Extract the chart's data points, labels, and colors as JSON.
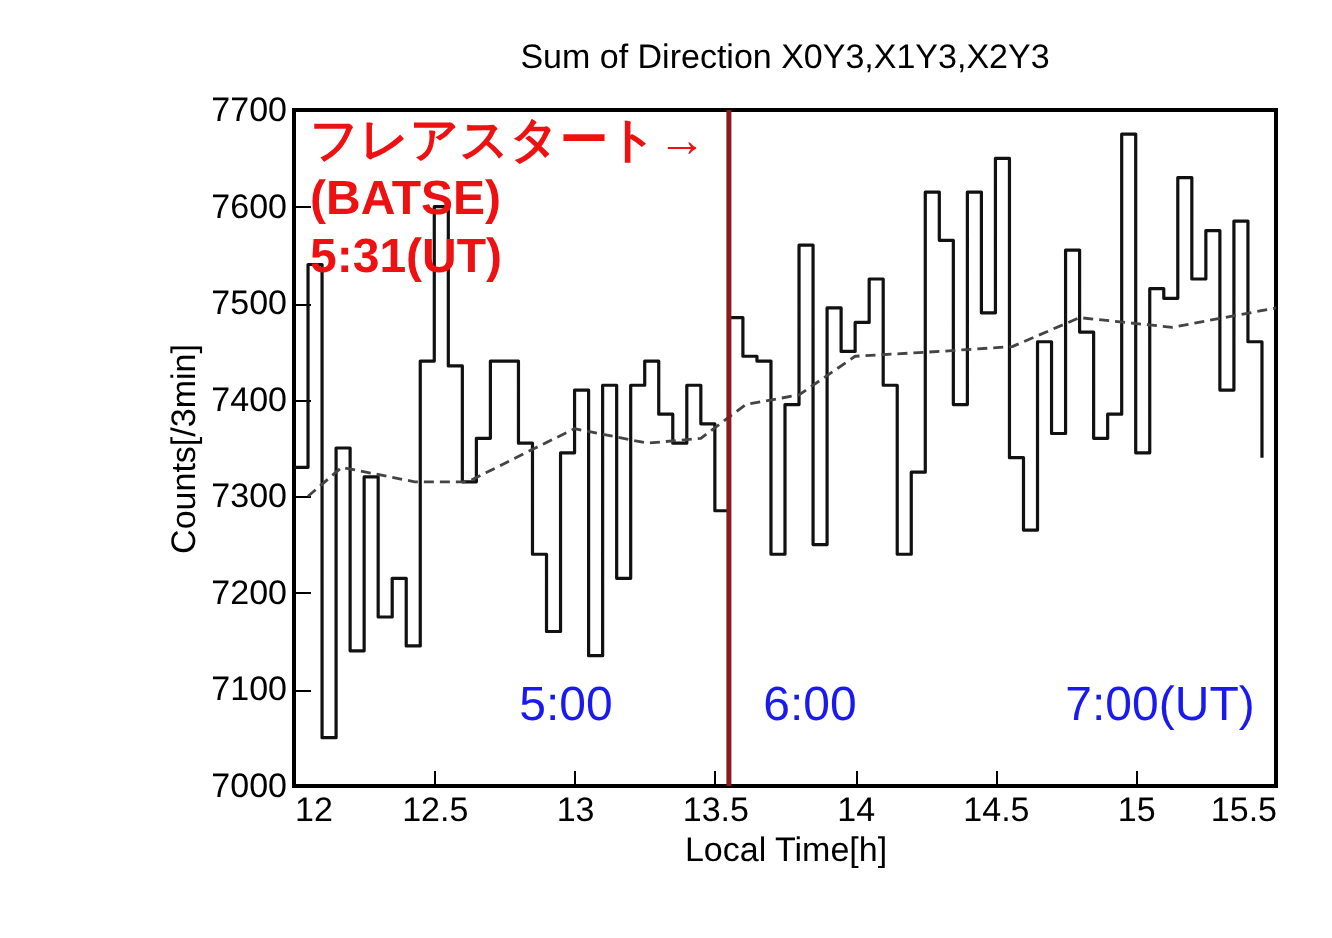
{
  "chart_data": {
    "type": "line",
    "title": "Sum of Direction X0Y3,X1Y3,X2Y3",
    "xlabel": "Local Time[h]",
    "ylabel": "Counts[/3min]",
    "xlim": [
      12,
      15.5
    ],
    "xticks": [
      12,
      12.5,
      13,
      13.5,
      14,
      14.5,
      15,
      15.5
    ],
    "ylim": [
      7000,
      7700
    ],
    "yticks": [
      7000,
      7100,
      7200,
      7300,
      7400,
      7500,
      7600,
      7700
    ],
    "grid": false,
    "series": [
      {
        "type": "step",
        "color": "#111111",
        "x": [
          12,
          12.05,
          12.1,
          12.15,
          12.2,
          12.25,
          12.3,
          12.35,
          12.4,
          12.45,
          12.5,
          12.55,
          12.6,
          12.65,
          12.7,
          12.75,
          12.8,
          12.85,
          12.9,
          12.95,
          13,
          13.05,
          13.1,
          13.15,
          13.2,
          13.25,
          13.3,
          13.35,
          13.4,
          13.45,
          13.5,
          13.55,
          13.6,
          13.65,
          13.7,
          13.75,
          13.8,
          13.85,
          13.9,
          13.95,
          14,
          14.05,
          14.1,
          14.15,
          14.2,
          14.25,
          14.3,
          14.35,
          14.4,
          14.45,
          14.5,
          14.55,
          14.6,
          14.65,
          14.7,
          14.75,
          14.8,
          14.85,
          14.9,
          14.95,
          15,
          15.05,
          15.1,
          15.15,
          15.2,
          15.25,
          15.3,
          15.35,
          15.4,
          15.45
        ],
        "values": [
          7330,
          7540,
          7050,
          7350,
          7140,
          7320,
          7175,
          7215,
          7145,
          7440,
          7600,
          7435,
          7315,
          7360,
          7440,
          7440,
          7355,
          7240,
          7160,
          7345,
          7410,
          7135,
          7415,
          7215,
          7415,
          7440,
          7385,
          7355,
          7415,
          7375,
          7285,
          7485,
          7445,
          7440,
          7240,
          7395,
          7560,
          7250,
          7495,
          7450,
          7480,
          7525,
          7415,
          7240,
          7325,
          7615,
          7565,
          7395,
          7615,
          7490,
          7650,
          7340,
          7265,
          7460,
          7365,
          7555,
          7470,
          7360,
          7385,
          7675,
          7345,
          7515,
          7505,
          7630,
          7525,
          7575,
          7410,
          7585,
          7460,
          7340
        ]
      },
      {
        "type": "line",
        "color": "#444444",
        "line_style": "dashed",
        "x": [
          12.05,
          12.17,
          12.43,
          12.62,
          12.86,
          13,
          13.26,
          13.45,
          13.61,
          13.8,
          14,
          14.3,
          14.56,
          14.8,
          15.13,
          15.5
        ],
        "values": [
          7300,
          7330,
          7315,
          7315,
          7350,
          7370,
          7355,
          7360,
          7395,
          7405,
          7445,
          7450,
          7455,
          7485,
          7475,
          7495
        ]
      }
    ],
    "ref_lines": [
      {
        "axis": "x",
        "value": 13.55,
        "color": "#8b1a1a"
      }
    ],
    "annotations": [
      "フレアスタート→\n(BATSE)\n5:31(UT)",
      "5:00",
      "6:00",
      "7:00(UT)"
    ]
  }
}
